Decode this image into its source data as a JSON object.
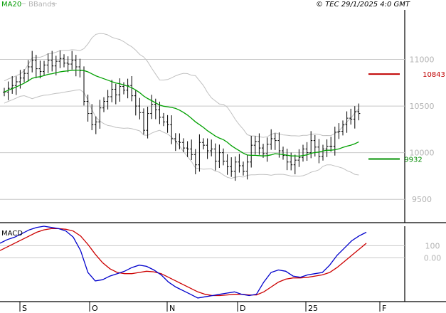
{
  "header": {
    "ma_label": "MA20",
    "bands_label": "BBands",
    "copyright": "© TEC 29/1/2025 4:0 GMT"
  },
  "colors": {
    "ma": "#00a000",
    "bands": "#c0c0c0",
    "bars": "#000000",
    "grid": "#c8c8c8",
    "macd": "#0000cc",
    "signal": "#cc0000",
    "resistance": "#c00000",
    "support": "#009000"
  },
  "chart_data": [
    {
      "type": "ohlc",
      "xlabel": "",
      "ylabel": "",
      "grid": true,
      "y_ticks": [
        "11000",
        "10500",
        "10000",
        "9500"
      ],
      "ylim": [
        9250,
        11530
      ],
      "x_ticks": [
        "S",
        "O",
        "N",
        "D",
        "25",
        "F"
      ],
      "annotations": [
        {
          "label": "10843",
          "value": 10843,
          "color": "red"
        },
        {
          "label": "9932",
          "value": 9932,
          "color": "green"
        }
      ],
      "series": [
        {
          "name": "MA20",
          "values": []
        },
        {
          "name": "BBands",
          "values": []
        }
      ]
    },
    {
      "type": "line",
      "title": "MACD",
      "y_ticks": [
        "100",
        "0.00"
      ],
      "ylim": [
        -360,
        260
      ],
      "grid": true,
      "series": [
        {
          "values": []
        },
        {
          "values": []
        }
      ]
    }
  ]
}
